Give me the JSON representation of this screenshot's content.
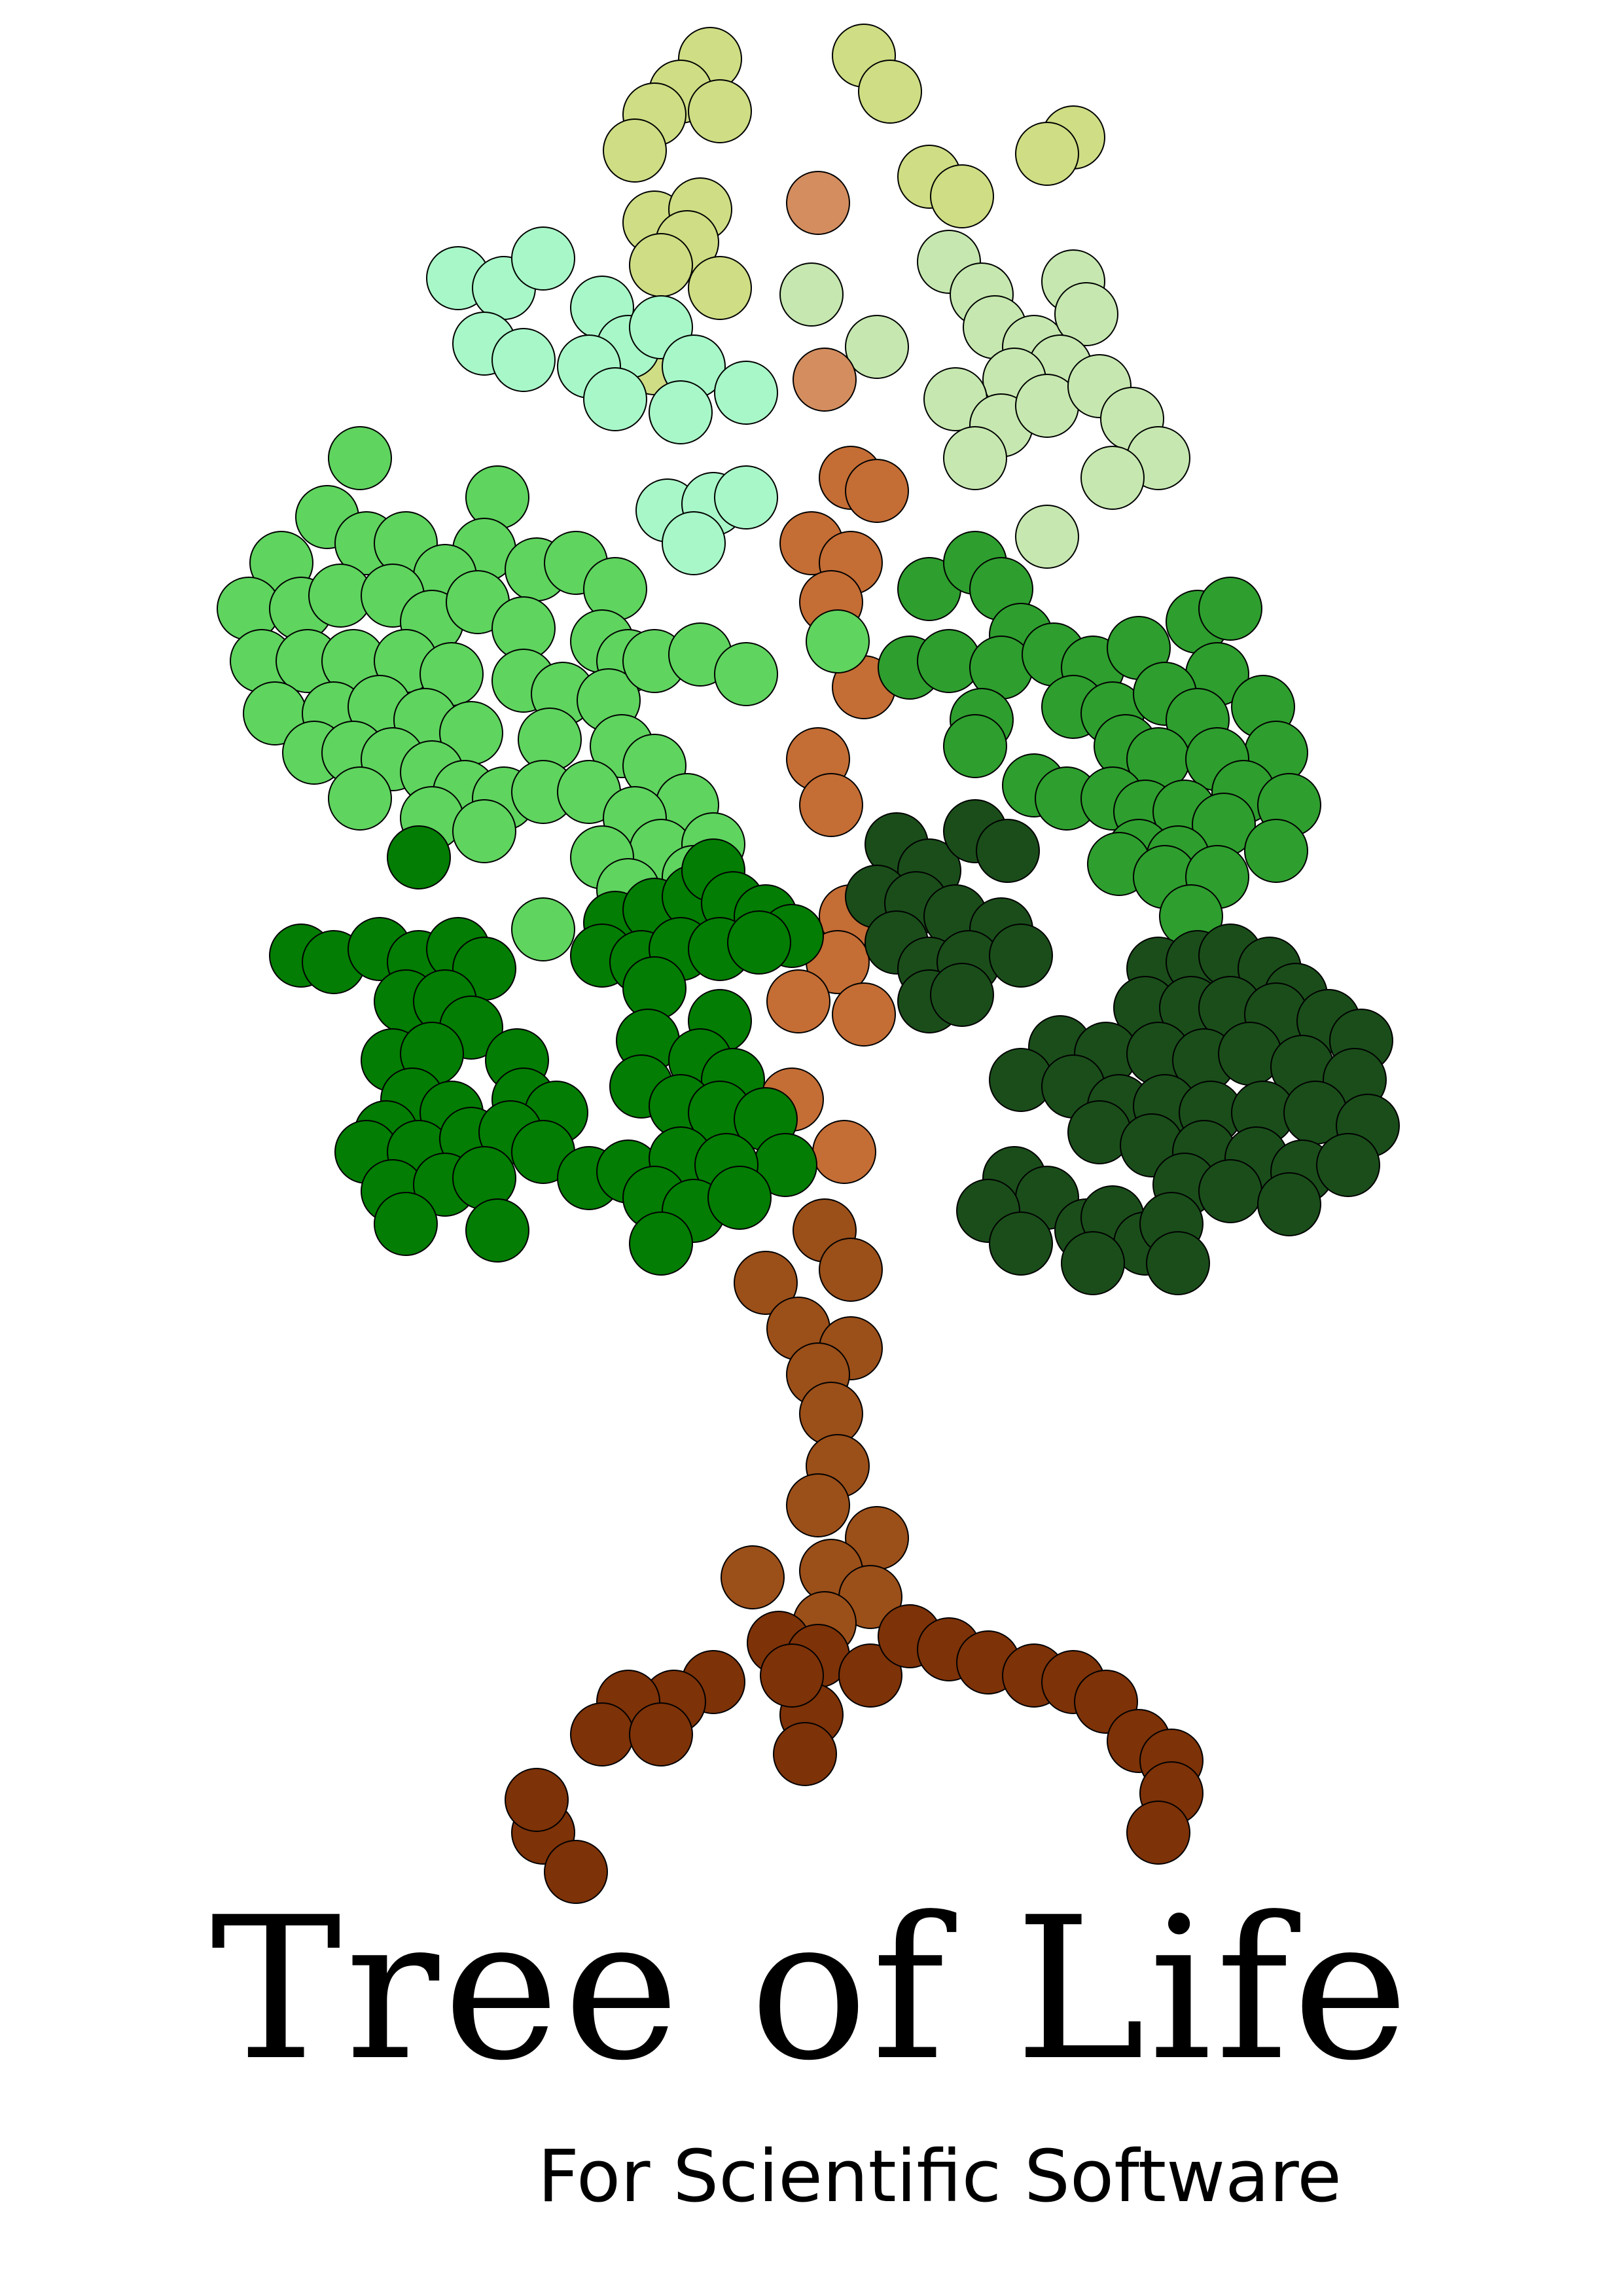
{
  "logo": {
    "title": "Tree of Life",
    "subtitle": "For Scientific Software",
    "colors": {
      "pale_yellow_green": "#cfdd84",
      "mint": "#a8f7c8",
      "pale_green": "#c6e8b0",
      "light_green": "#5fd45f",
      "medium_green": "#2e9e2e",
      "green": "#037d03",
      "dark_green": "#1a4d1a",
      "tan": "#d48d5f",
      "orange_brown": "#c46d35",
      "brown": "#9b4f19",
      "dark_brown": "#7d3208",
      "outline": "#000000"
    }
  }
}
